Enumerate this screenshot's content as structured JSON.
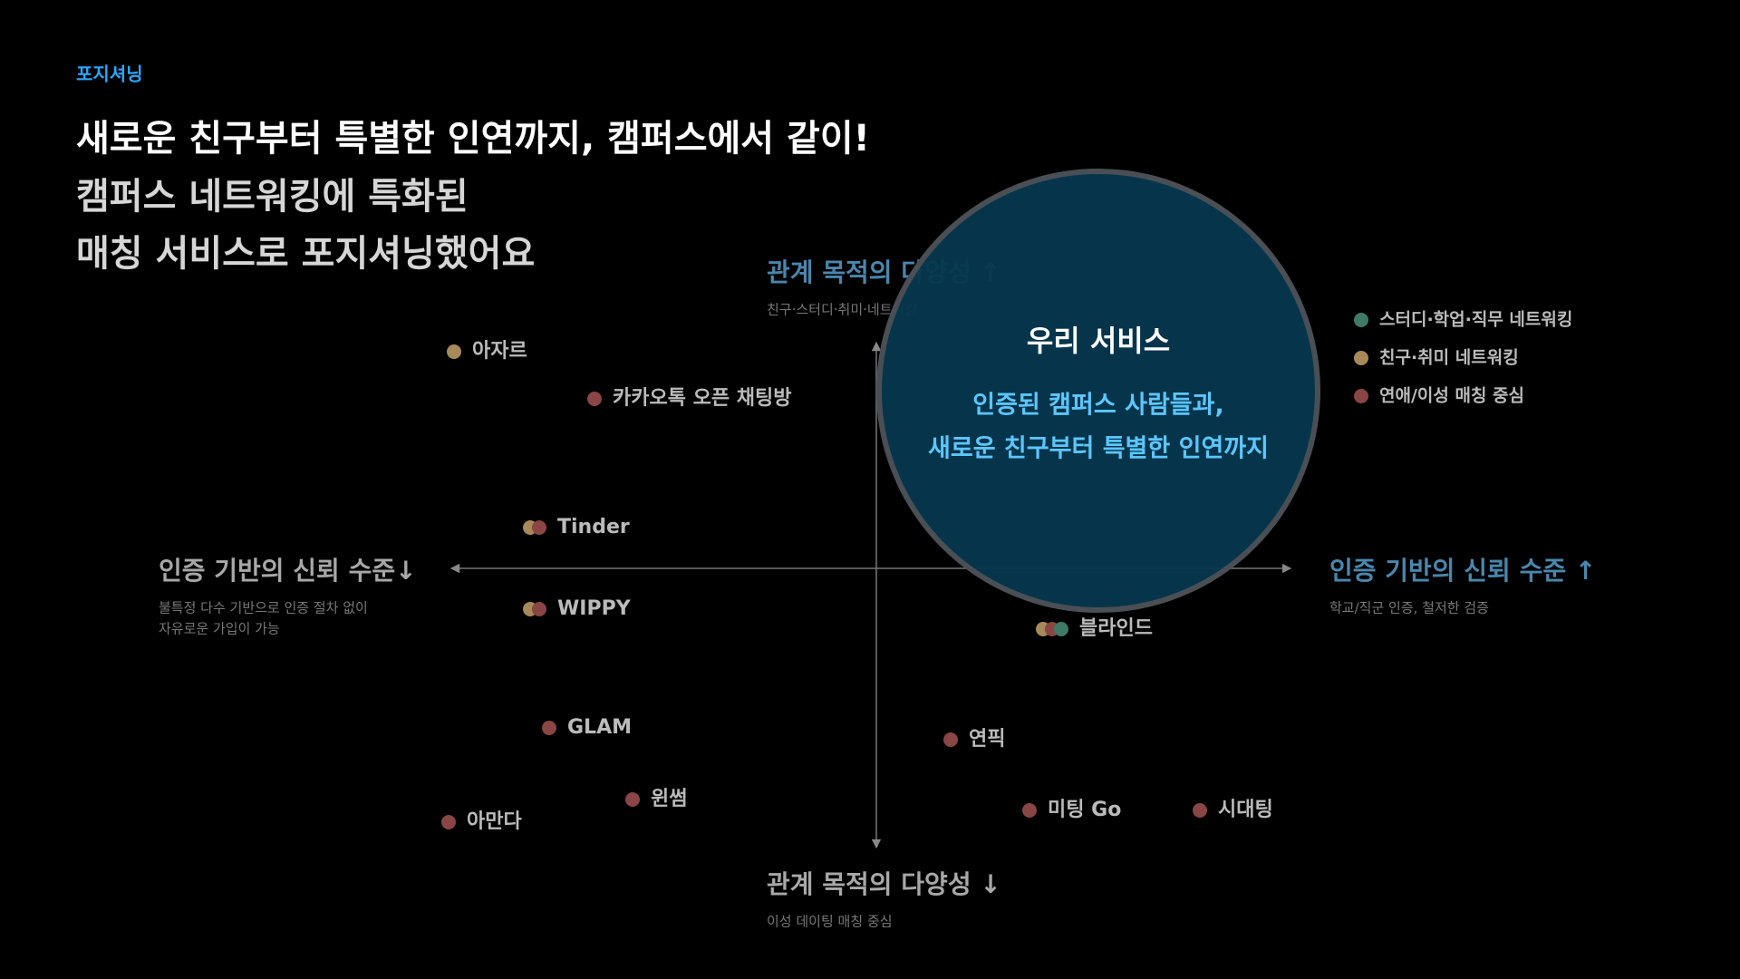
{
  "header": {
    "eyebrow": "포지셔닝",
    "lines": [
      "새로운 친구부터 특별한 인연까지, 캠퍼스에서 같이!",
      "캠퍼스 네트워킹에 특화된",
      "매칭 서비스로 포지셔닝했어요"
    ]
  },
  "axes": {
    "top": {
      "label": "관계 목적의 다양성 ↑",
      "sub": [
        "친구·스터디·취미·네트워킹"
      ]
    },
    "bottom": {
      "label": "관계 목적의 다양성 ↓",
      "sub": [
        "이성 데이팅 매칭 중심"
      ]
    },
    "left": {
      "label": "인증 기반의 신뢰 수준↓",
      "sub": [
        "불특정 다수 기반으로 인증 절차 없이",
        "자유로운 가입이 가능"
      ]
    },
    "right": {
      "label": "인증 기반의 신뢰 수준 ↑",
      "sub": [
        "학교/직군 인증, 철저한 검증"
      ]
    }
  },
  "legend": [
    {
      "label": "스터디·학업·직무 네트워킹",
      "color": "#3f7a66"
    },
    {
      "label": "친구·취미 네트워킹",
      "color": "#a8895a"
    },
    {
      "label": "연애/이성 매칭 중심",
      "color": "#8a4545"
    }
  ],
  "points": [
    {
      "label": "아자르",
      "colors": [
        "#a8895a"
      ]
    },
    {
      "label": "카카오톡 오픈 채팅방",
      "colors": [
        "#8a4545"
      ]
    },
    {
      "label": "Tinder",
      "colors": [
        "#a8895a",
        "#8a4545"
      ]
    },
    {
      "label": "WIPPY",
      "colors": [
        "#a8895a",
        "#8a4545"
      ]
    },
    {
      "label": "블라인드",
      "colors": [
        "#a8895a",
        "#8a4545",
        "#3f7a66"
      ]
    },
    {
      "label": "GLAM",
      "colors": [
        "#8a4545"
      ]
    },
    {
      "label": "윈썸",
      "colors": [
        "#8a4545"
      ]
    },
    {
      "label": "아만다",
      "colors": [
        "#8a4545"
      ]
    },
    {
      "label": "연픽",
      "colors": [
        "#8a4545"
      ]
    },
    {
      "label": "미팅 Go",
      "colors": [
        "#8a4545"
      ]
    },
    {
      "label": "시대팅",
      "colors": [
        "#8a4545"
      ]
    }
  ],
  "highlight": {
    "title": "우리 서비스",
    "lines": [
      "인증된 캠퍼스 사람들과,",
      "새로운 친구부터 특별한 인연까지"
    ]
  }
}
